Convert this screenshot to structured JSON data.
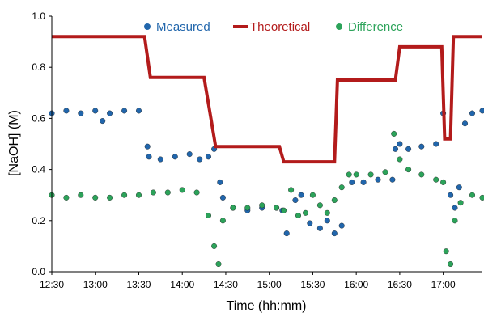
{
  "chart_data": {
    "type": "scatter",
    "title": "",
    "xlabel": "Time (hh:mm)",
    "ylabel": "[NaOH] (M)",
    "x_ticks": [
      "12:30",
      "13:00",
      "13:30",
      "14:00",
      "14:30",
      "15:00",
      "15:30",
      "16:00",
      "16:30",
      "17:00"
    ],
    "y_ticks": [
      "0.0",
      "0.2",
      "0.4",
      "0.6",
      "0.8",
      "1.0"
    ],
    "xlim": [
      "12:30",
      "17:27"
    ],
    "ylim": [
      0,
      1.0
    ],
    "grid": false,
    "legend": {
      "placement": "top",
      "entries": [
        "Measured",
        "Theoretical",
        "Difference"
      ]
    },
    "series": [
      {
        "name": "Measured",
        "style": "scatter",
        "color": "#2166ac",
        "x": [
          "12:30",
          "12:40",
          "12:50",
          "13:00",
          "13:05",
          "13:10",
          "13:20",
          "13:30",
          "13:36",
          "13:37",
          "13:45",
          "13:55",
          "14:05",
          "14:12",
          "14:18",
          "14:22",
          "14:26",
          "14:28",
          "14:35",
          "14:45",
          "14:55",
          "15:05",
          "15:09",
          "15:12",
          "15:18",
          "15:22",
          "15:28",
          "15:35",
          "15:40",
          "15:45",
          "15:50",
          "15:57",
          "16:05",
          "16:15",
          "16:25",
          "16:27",
          "16:30",
          "16:36",
          "16:45",
          "16:55",
          "17:00",
          "17:05",
          "17:08",
          "17:11",
          "17:15",
          "17:20",
          "17:27"
        ],
        "y": [
          0.62,
          0.63,
          0.62,
          0.63,
          0.59,
          0.62,
          0.63,
          0.63,
          0.49,
          0.45,
          0.44,
          0.45,
          0.46,
          0.44,
          0.45,
          0.48,
          0.35,
          0.29,
          0.25,
          0.24,
          0.25,
          0.25,
          0.24,
          0.15,
          0.28,
          0.3,
          0.19,
          0.17,
          0.2,
          0.15,
          0.18,
          0.35,
          0.35,
          0.36,
          0.36,
          0.48,
          0.5,
          0.48,
          0.49,
          0.5,
          0.62,
          0.3,
          0.25,
          0.33,
          0.58,
          0.62,
          0.63
        ]
      },
      {
        "name": "Theoretical",
        "style": "line",
        "color": "#b31b1b",
        "x": [
          "12:30",
          "13:34",
          "13:38",
          "14:15",
          "14:23",
          "15:07",
          "15:10",
          "15:45",
          "15:47",
          "16:27",
          "16:30",
          "16:59",
          "17:01",
          "17:05",
          "17:07",
          "17:27"
        ],
        "y": [
          0.92,
          0.92,
          0.76,
          0.76,
          0.49,
          0.49,
          0.43,
          0.43,
          0.75,
          0.75,
          0.88,
          0.88,
          0.52,
          0.52,
          0.92,
          0.92
        ]
      },
      {
        "name": "Difference",
        "style": "scatter",
        "color": "#2ca35a",
        "x": [
          "12:30",
          "12:40",
          "12:50",
          "13:00",
          "13:10",
          "13:20",
          "13:30",
          "13:40",
          "13:50",
          "14:00",
          "14:10",
          "14:18",
          "14:22",
          "14:25",
          "14:28",
          "14:35",
          "14:45",
          "14:55",
          "15:05",
          "15:10",
          "15:15",
          "15:20",
          "15:25",
          "15:30",
          "15:35",
          "15:40",
          "15:45",
          "15:50",
          "15:55",
          "16:00",
          "16:10",
          "16:20",
          "16:26",
          "16:30",
          "16:36",
          "16:45",
          "16:55",
          "17:00",
          "17:02",
          "17:05",
          "17:08",
          "17:12",
          "17:20",
          "17:27"
        ],
        "y": [
          0.3,
          0.29,
          0.3,
          0.29,
          0.29,
          0.3,
          0.3,
          0.31,
          0.31,
          0.32,
          0.31,
          0.22,
          0.1,
          0.03,
          0.2,
          0.25,
          0.25,
          0.26,
          0.25,
          0.24,
          0.32,
          0.22,
          0.23,
          0.3,
          0.26,
          0.23,
          0.28,
          0.33,
          0.38,
          0.38,
          0.38,
          0.39,
          0.54,
          0.44,
          0.4,
          0.38,
          0.36,
          0.35,
          0.08,
          0.03,
          0.2,
          0.27,
          0.3,
          0.29
        ]
      }
    ]
  }
}
